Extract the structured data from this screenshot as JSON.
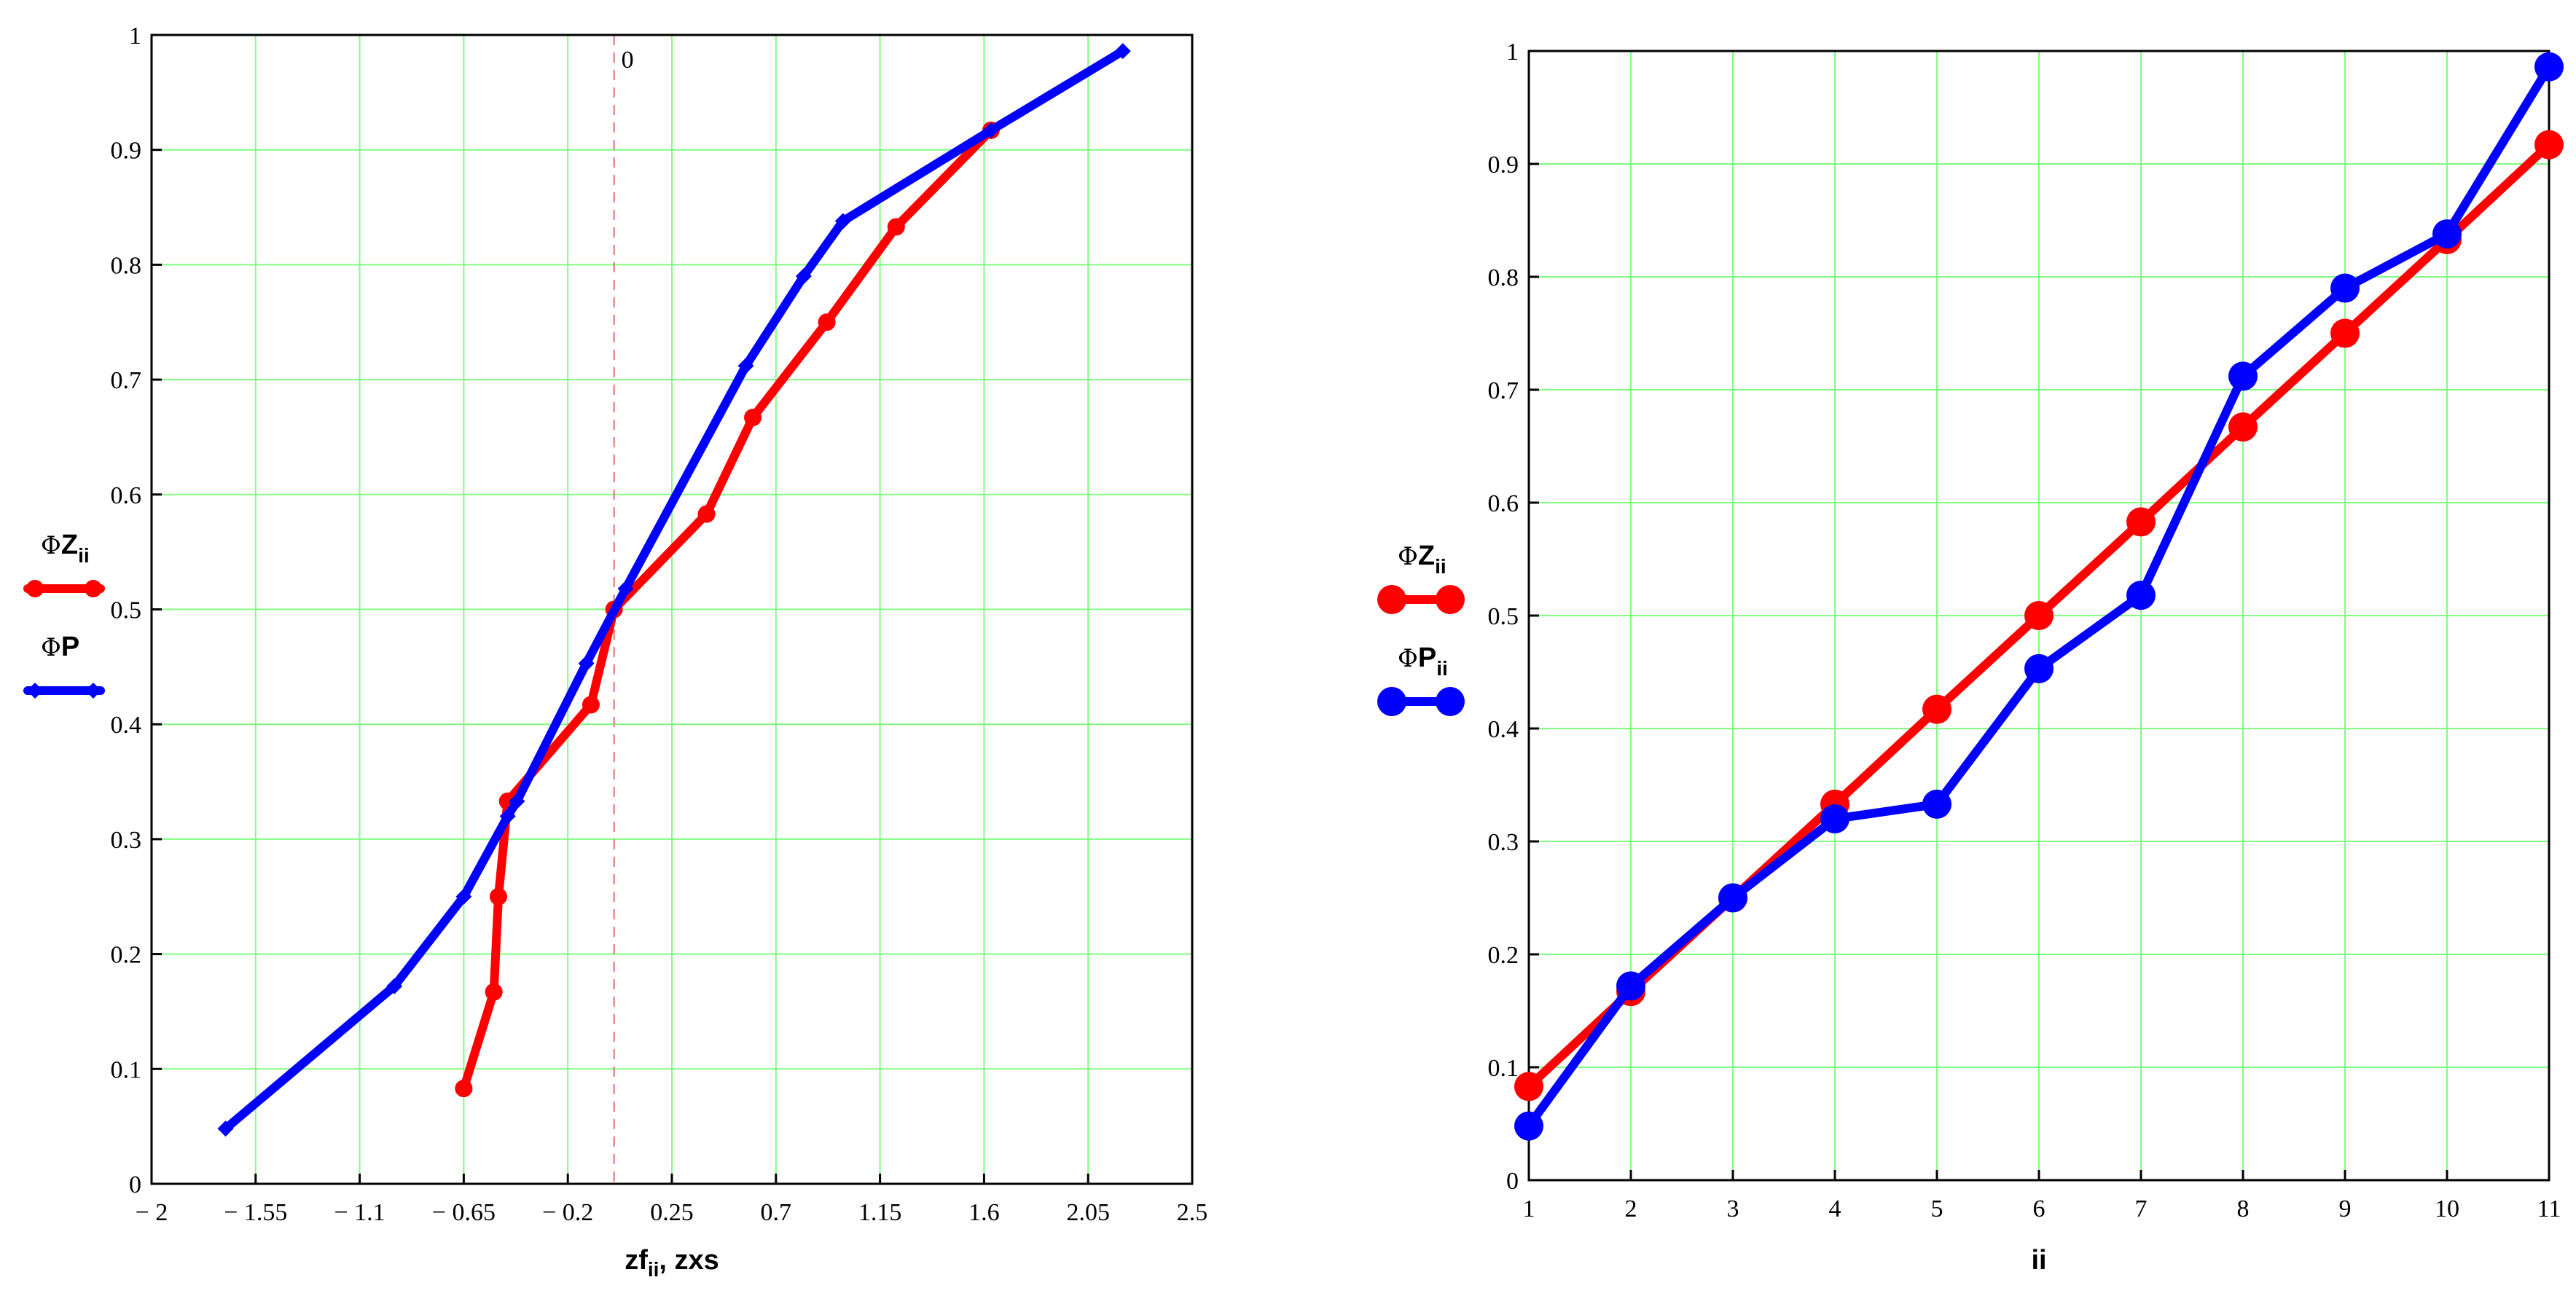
{
  "colors": {
    "red": "#ff0000",
    "blue": "#0000ff",
    "grid": "#80ff80",
    "zero_line": "#e07070"
  },
  "chart_data": [
    {
      "type": "line",
      "xlim": [
        -2,
        2.5
      ],
      "ylim": [
        0,
        1
      ],
      "xticks": [
        "− 2",
        "− 1.55",
        "− 1.1",
        "− 0.65",
        "− 0.2",
        "0.25",
        "0.7",
        "1.15",
        "1.6",
        "2.05",
        "2.5"
      ],
      "xtick_values": [
        -2,
        -1.55,
        -1.1,
        -0.65,
        -0.2,
        0.25,
        0.7,
        1.15,
        1.6,
        2.05,
        2.5
      ],
      "yticks": [
        "0",
        "0.1",
        "0.2",
        "0.3",
        "0.4",
        "0.5",
        "0.6",
        "0.7",
        "0.8",
        "0.9",
        "1"
      ],
      "ytick_values": [
        0,
        0.1,
        0.2,
        0.3,
        0.4,
        0.5,
        0.6,
        0.7,
        0.8,
        0.9,
        1
      ],
      "xlabel": {
        "main1": "zf",
        "sub1": "ii",
        "rest": ", zxs"
      },
      "vline": {
        "x": 0,
        "label": "0"
      },
      "grid": true,
      "legend_position": "left",
      "series": [
        {
          "legend_phi": "Φ",
          "legend_main": "Z",
          "legend_sub": "ii",
          "color": "#ff0000",
          "marker": "circle",
          "x": [
            -0.65,
            -0.52,
            -0.5,
            -0.46,
            -0.1,
            0.0,
            0.4,
            0.6,
            0.92,
            1.22,
            1.63
          ],
          "y": [
            0.083,
            0.167,
            0.25,
            0.333,
            0.417,
            0.5,
            0.583,
            0.667,
            0.75,
            0.833,
            0.917
          ]
        },
        {
          "legend_phi": "Φ",
          "legend_main": "P",
          "legend_sub": "",
          "color": "#0000ff",
          "marker": "diamond",
          "x": [
            -1.68,
            -0.95,
            -0.65,
            -0.46,
            -0.42,
            -0.12,
            0.05,
            0.57,
            0.82,
            0.99,
            1.63,
            2.2
          ],
          "y": [
            0.048,
            0.172,
            0.25,
            0.32,
            0.333,
            0.453,
            0.518,
            0.712,
            0.79,
            0.838,
            0.917,
            0.986
          ]
        }
      ]
    },
    {
      "type": "line",
      "xlim": [
        1,
        11
      ],
      "ylim": [
        0,
        1
      ],
      "xticks": [
        "1",
        "2",
        "3",
        "4",
        "5",
        "6",
        "7",
        "8",
        "9",
        "10",
        "11"
      ],
      "xtick_values": [
        1,
        2,
        3,
        4,
        5,
        6,
        7,
        8,
        9,
        10,
        11
      ],
      "yticks": [
        "0",
        "0.1",
        "0.2",
        "0.3",
        "0.4",
        "0.5",
        "0.6",
        "0.7",
        "0.8",
        "0.9",
        "1"
      ],
      "ytick_values": [
        0,
        0.1,
        0.2,
        0.3,
        0.4,
        0.5,
        0.6,
        0.7,
        0.8,
        0.9,
        1
      ],
      "xlabel": {
        "main1": "ii",
        "sub1": "",
        "rest": ""
      },
      "grid": true,
      "legend_position": "left",
      "series": [
        {
          "legend_phi": "Φ",
          "legend_main": "Z",
          "legend_sub": "ii",
          "color": "#ff0000",
          "marker": "circle-large",
          "x": [
            1,
            2,
            3,
            4,
            5,
            6,
            7,
            8,
            9,
            10,
            11
          ],
          "y": [
            0.083,
            0.167,
            0.25,
            0.333,
            0.417,
            0.5,
            0.583,
            0.667,
            0.75,
            0.833,
            0.917
          ]
        },
        {
          "legend_phi": "Φ",
          "legend_main": "P",
          "legend_sub": "ii",
          "color": "#0000ff",
          "marker": "circle-large",
          "x": [
            1,
            2,
            3,
            4,
            5,
            6,
            7,
            8,
            9,
            10,
            11
          ],
          "y": [
            0.048,
            0.172,
            0.25,
            0.32,
            0.333,
            0.453,
            0.518,
            0.712,
            0.79,
            0.838,
            0.986
          ]
        }
      ]
    }
  ]
}
